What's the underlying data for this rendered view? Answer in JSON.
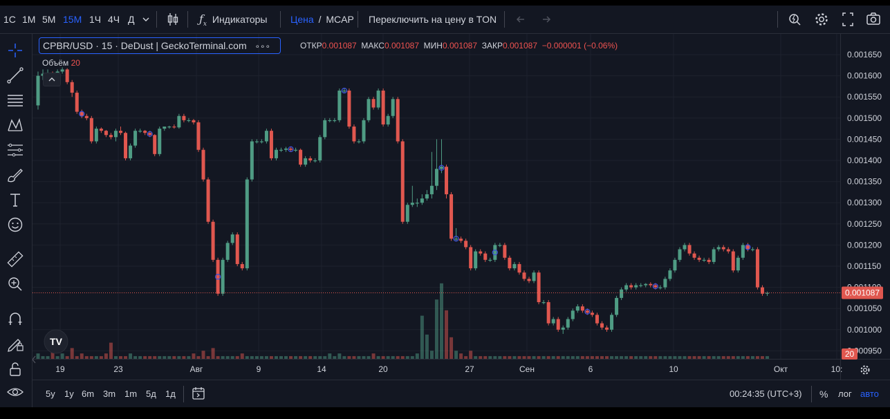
{
  "toolbar": {
    "intervals": [
      "1С",
      "1М",
      "5М",
      "15М",
      "1Ч",
      "4Ч",
      "Д"
    ],
    "active_interval": "15М",
    "indicators_label": "Индикаторы",
    "price_label": "Цена",
    "separator": "/",
    "mcap_label": "MCAP",
    "switch_label": "Переключить на цену в TON"
  },
  "legend": {
    "symbol": "CPBR/USD · 15 · DeDust | GeckoTerminal.com",
    "more": "∘∘∘",
    "open_key": "ОТКР",
    "open": "0.001087",
    "high_key": "МАКС",
    "high": "0.001087",
    "low_key": "МИН",
    "low": "0.001087",
    "close_key": "ЗАКР",
    "close": "0.001087",
    "change": "−0.000001 (−0.06%)",
    "volume_key": "Объём",
    "volume": "20"
  },
  "price_axis": {
    "ticks": [
      "0.001650",
      "0.001600",
      "0.001550",
      "0.001500",
      "0.001450",
      "0.001400",
      "0.001350",
      "0.001300",
      "0.001250",
      "0.001200",
      "0.001150",
      "0.001100",
      "0.001050",
      "0.001000",
      "0.000950"
    ],
    "last_price": "0.001087",
    "volume_badge": "20"
  },
  "time_axis": {
    "ticks": [
      "19",
      "23",
      "Авг",
      "9",
      "14",
      "20",
      "27",
      "Сен",
      "6",
      "10",
      "Окт",
      "10:"
    ]
  },
  "bottom": {
    "ranges": [
      "5y",
      "1y",
      "6m",
      "3m",
      "1m",
      "5д",
      "1д"
    ],
    "clock": "00:24:35 (UTC+3)",
    "percent": "%",
    "log": "лог",
    "auto": "авто"
  },
  "colors": {
    "up": "#4f9c84",
    "down": "#e0574f",
    "accent": "#2962ff",
    "background": "#131722"
  },
  "chart_data": {
    "type": "candlestick",
    "ylim": [
      0.000925,
      0.001675
    ],
    "candles": [
      [
        0.00153,
        0.00161,
        0.00152,
        0.0016
      ],
      [
        0.0016,
        0.001615,
        0.00159,
        0.001605
      ],
      [
        0.001605,
        0.001615,
        0.0016,
        0.001607
      ],
      [
        0.001607,
        0.00161,
        0.0016,
        0.001605
      ],
      [
        0.001605,
        0.001615,
        0.0016,
        0.00161
      ],
      [
        0.00161,
        0.00162,
        0.001605,
        0.001615
      ],
      [
        0.001615,
        0.001618,
        0.00158,
        0.001585
      ],
      [
        0.001585,
        0.00159,
        0.00155,
        0.00156
      ],
      [
        0.00156,
        0.001565,
        0.00151,
        0.001515
      ],
      [
        0.001515,
        0.00152,
        0.0015,
        0.001505
      ],
      [
        0.001505,
        0.00151,
        0.001495,
        0.0015
      ],
      [
        0.0015,
        0.001505,
        0.00144,
        0.001445
      ],
      [
        0.001445,
        0.00148,
        0.00144,
        0.001475
      ],
      [
        0.001475,
        0.001478,
        0.001465,
        0.00147
      ],
      [
        0.00147,
        0.001472,
        0.001455,
        0.00146
      ],
      [
        0.00146,
        0.001465,
        0.00145,
        0.001455
      ],
      [
        0.001455,
        0.001475,
        0.001445,
        0.00147
      ],
      [
        0.00147,
        0.00148,
        0.00146,
        0.001465
      ],
      [
        0.001465,
        0.001468,
        0.0014,
        0.001405
      ],
      [
        0.001405,
        0.00144,
        0.0014,
        0.001435
      ],
      [
        0.001435,
        0.001475,
        0.00143,
        0.00147
      ],
      [
        0.00147,
        0.001475,
        0.001465,
        0.00147
      ],
      [
        0.00147,
        0.001472,
        0.00146,
        0.001465
      ],
      [
        0.001465,
        0.00147,
        0.001455,
        0.00146
      ],
      [
        0.00146,
        0.001462,
        0.00141,
        0.001415
      ],
      [
        0.001415,
        0.00148,
        0.00141,
        0.001475
      ],
      [
        0.001475,
        0.00148,
        0.00147,
        0.00148
      ],
      [
        0.00148,
        0.001482,
        0.001475,
        0.00148
      ],
      [
        0.00148,
        0.001485,
        0.001475,
        0.001478
      ],
      [
        0.001478,
        0.00151,
        0.001475,
        0.001505
      ],
      [
        0.001505,
        0.00151,
        0.00149,
        0.001495
      ],
      [
        0.001495,
        0.0015,
        0.00149,
        0.001495
      ],
      [
        0.001495,
        0.001498,
        0.001485,
        0.00149
      ],
      [
        0.00149,
        0.001495,
        0.00142,
        0.001425
      ],
      [
        0.001425,
        0.00143,
        0.00135,
        0.001355
      ],
      [
        0.001355,
        0.00136,
        0.00125,
        0.001255
      ],
      [
        0.001255,
        0.00126,
        0.00116,
        0.001165
      ],
      [
        0.001165,
        0.00117,
        0.00108,
        0.001085
      ],
      [
        0.001085,
        0.00117,
        0.00108,
        0.001165
      ],
      [
        0.001165,
        0.00121,
        0.00116,
        0.001205
      ],
      [
        0.001205,
        0.00123,
        0.0012,
        0.001225
      ],
      [
        0.001225,
        0.00123,
        0.00115,
        0.001155
      ],
      [
        0.001155,
        0.00116,
        0.00114,
        0.001145
      ],
      [
        0.001145,
        0.00136,
        0.00114,
        0.001355
      ],
      [
        0.001355,
        0.00145,
        0.00135,
        0.001445
      ],
      [
        0.001445,
        0.00145,
        0.00144,
        0.001445
      ],
      [
        0.001445,
        0.00145,
        0.00144,
        0.001445
      ],
      [
        0.001445,
        0.001475,
        0.00144,
        0.00147
      ],
      [
        0.00147,
        0.001475,
        0.0014,
        0.001405
      ],
      [
        0.001405,
        0.00143,
        0.0014,
        0.001425
      ],
      [
        0.001425,
        0.00143,
        0.00142,
        0.001425
      ],
      [
        0.001425,
        0.001432,
        0.00142,
        0.001428
      ],
      [
        0.001428,
        0.001432,
        0.00142,
        0.001425
      ],
      [
        0.001425,
        0.00143,
        0.00142,
        0.001425
      ],
      [
        0.001425,
        0.001428,
        0.001385,
        0.00139
      ],
      [
        0.00139,
        0.00141,
        0.001385,
        0.001405
      ],
      [
        0.001405,
        0.00141,
        0.001395,
        0.0014
      ],
      [
        0.0014,
        0.001405,
        0.001395,
        0.0014
      ],
      [
        0.0014,
        0.00146,
        0.001395,
        0.001455
      ],
      [
        0.001455,
        0.0015,
        0.00145,
        0.001495
      ],
      [
        0.001495,
        0.0015,
        0.00149,
        0.001495
      ],
      [
        0.001495,
        0.0015,
        0.00149,
        0.001495
      ],
      [
        0.001495,
        0.00157,
        0.00149,
        0.001565
      ],
      [
        0.001565,
        0.00157,
        0.00156,
        0.001565
      ],
      [
        0.001565,
        0.00157,
        0.001475,
        0.00148
      ],
      [
        0.00148,
        0.001485,
        0.00144,
        0.001445
      ],
      [
        0.001445,
        0.00145,
        0.00144,
        0.001445
      ],
      [
        0.001445,
        0.0015,
        0.00144,
        0.001495
      ],
      [
        0.001495,
        0.00155,
        0.00149,
        0.001545
      ],
      [
        0.001545,
        0.00155,
        0.00152,
        0.001525
      ],
      [
        0.001525,
        0.00157,
        0.00152,
        0.001565
      ],
      [
        0.001565,
        0.00157,
        0.00148,
        0.001485
      ],
      [
        0.001485,
        0.00151,
        0.00148,
        0.001505
      ],
      [
        0.001505,
        0.00155,
        0.0015,
        0.001545
      ],
      [
        0.001545,
        0.00155,
        0.00144,
        0.001445
      ],
      [
        0.001445,
        0.00145,
        0.00125,
        0.001255
      ],
      [
        0.001255,
        0.0013,
        0.00125,
        0.001295
      ],
      [
        0.001295,
        0.00134,
        0.00129,
        0.0013
      ],
      [
        0.0013,
        0.00131,
        0.00129,
        0.0013
      ],
      [
        0.0013,
        0.00132,
        0.001295,
        0.00131
      ],
      [
        0.00131,
        0.00133,
        0.001305,
        0.00132
      ],
      [
        0.00132,
        0.00142,
        0.00131,
        0.00134
      ],
      [
        0.00134,
        0.00145,
        0.00133,
        0.00138
      ],
      [
        0.00138,
        0.00145,
        0.00137,
        0.001385
      ],
      [
        0.001385,
        0.00139,
        0.00131,
        0.00132
      ],
      [
        0.00132,
        0.001325,
        0.00121,
        0.001215
      ],
      [
        0.001215,
        0.00124,
        0.00121,
        0.001215
      ],
      [
        0.001215,
        0.00122,
        0.001205,
        0.00121
      ],
      [
        0.00121,
        0.001215,
        0.00119,
        0.001195
      ],
      [
        0.001195,
        0.0012,
        0.00114,
        0.001145
      ],
      [
        0.001145,
        0.00119,
        0.00114,
        0.001185
      ],
      [
        0.001185,
        0.00119,
        0.001175,
        0.00118
      ],
      [
        0.00118,
        0.001185,
        0.00116,
        0.001165
      ],
      [
        0.001165,
        0.00117,
        0.00116,
        0.001165
      ],
      [
        0.001165,
        0.001205,
        0.00116,
        0.0012
      ],
      [
        0.0012,
        0.001205,
        0.001195,
        0.0012
      ],
      [
        0.0012,
        0.001205,
        0.001165,
        0.00117
      ],
      [
        0.00117,
        0.001175,
        0.00114,
        0.001145
      ],
      [
        0.001145,
        0.00116,
        0.00114,
        0.001155
      ],
      [
        0.001155,
        0.00116,
        0.00113,
        0.001135
      ],
      [
        0.001135,
        0.00114,
        0.001115,
        0.00112
      ],
      [
        0.00112,
        0.001125,
        0.00111,
        0.001115
      ],
      [
        0.001115,
        0.00114,
        0.00111,
        0.001135
      ],
      [
        0.001135,
        0.00114,
        0.00106,
        0.001065
      ],
      [
        0.001065,
        0.00107,
        0.00106,
        0.001065
      ],
      [
        0.001065,
        0.00107,
        0.00101,
        0.001015
      ],
      [
        0.001015,
        0.00103,
        0.00101,
        0.001025
      ],
      [
        0.001025,
        0.00103,
        0.000995,
        0.001
      ],
      [
        0.001,
        0.00101,
        0.00099,
        0.001005
      ],
      [
        0.001005,
        0.00103,
        0.001,
        0.001025
      ],
      [
        0.001025,
        0.00105,
        0.00102,
        0.001045
      ],
      [
        0.001045,
        0.00106,
        0.00104,
        0.001055
      ],
      [
        0.001055,
        0.00106,
        0.00104,
        0.001045
      ],
      [
        0.001045,
        0.00105,
        0.001035,
        0.00104
      ],
      [
        0.00104,
        0.001045,
        0.00103,
        0.001035
      ],
      [
        0.001035,
        0.00104,
        0.00101,
        0.001015
      ],
      [
        0.001015,
        0.00102,
        0.001,
        0.001005
      ],
      [
        0.001005,
        0.00101,
        0.000995,
        0.001
      ],
      [
        0.001,
        0.00104,
        0.000995,
        0.001035
      ],
      [
        0.001035,
        0.00108,
        0.00103,
        0.001075
      ],
      [
        0.001075,
        0.0011,
        0.00107,
        0.001095
      ],
      [
        0.001095,
        0.00111,
        0.00109,
        0.001105
      ],
      [
        0.001105,
        0.00111,
        0.001095,
        0.0011
      ],
      [
        0.0011,
        0.00111,
        0.001095,
        0.001105
      ],
      [
        0.001105,
        0.00111,
        0.0011,
        0.001105
      ],
      [
        0.001105,
        0.00111,
        0.0011,
        0.001108
      ],
      [
        0.001108,
        0.001112,
        0.0011,
        0.001105
      ],
      [
        0.001105,
        0.00111,
        0.001095,
        0.0011
      ],
      [
        0.0011,
        0.001105,
        0.001095,
        0.0011
      ],
      [
        0.0011,
        0.001125,
        0.001095,
        0.00112
      ],
      [
        0.00112,
        0.001145,
        0.001115,
        0.00114
      ],
      [
        0.00114,
        0.00117,
        0.001135,
        0.001165
      ],
      [
        0.001165,
        0.001195,
        0.00116,
        0.00119
      ],
      [
        0.00119,
        0.001205,
        0.001185,
        0.0012
      ],
      [
        0.0012,
        0.001205,
        0.001175,
        0.00118
      ],
      [
        0.00118,
        0.001185,
        0.001165,
        0.00117
      ],
      [
        0.00117,
        0.001175,
        0.00116,
        0.001165
      ],
      [
        0.001165,
        0.00117,
        0.00116,
        0.001165
      ],
      [
        0.001165,
        0.00117,
        0.001155,
        0.00116
      ],
      [
        0.00116,
        0.001195,
        0.001155,
        0.00119
      ],
      [
        0.00119,
        0.0012,
        0.001185,
        0.001195
      ],
      [
        0.001195,
        0.0012,
        0.001185,
        0.00119
      ],
      [
        0.00119,
        0.001195,
        0.00118,
        0.001185
      ],
      [
        0.001185,
        0.00119,
        0.001135,
        0.00114
      ],
      [
        0.00114,
        0.001175,
        0.001135,
        0.00117
      ],
      [
        0.00117,
        0.001205,
        0.001165,
        0.0012
      ],
      [
        0.0012,
        0.001205,
        0.001185,
        0.00119
      ],
      [
        0.00119,
        0.001195,
        0.001185,
        0.00119
      ],
      [
        0.00119,
        0.001195,
        0.001095,
        0.0011
      ],
      [
        0.0011,
        0.001105,
        0.00108,
        0.001085
      ],
      [
        0.001085,
        0.00109,
        0.00108,
        0.001087
      ]
    ],
    "volumes": [
      2,
      1,
      1,
      3,
      1,
      2,
      1,
      4,
      1,
      2,
      1,
      1,
      1,
      1,
      2,
      6,
      1,
      1,
      1,
      2,
      1,
      1,
      1,
      1,
      1,
      1,
      1,
      1,
      1,
      1,
      1,
      1,
      2,
      1,
      3,
      1,
      4,
      1,
      1,
      1,
      1,
      1,
      2,
      1,
      1,
      1,
      1,
      1,
      1,
      1,
      1,
      1,
      1,
      1,
      1,
      1,
      1,
      1,
      1,
      1,
      2,
      1,
      2,
      1,
      1,
      1,
      1,
      1,
      1,
      2,
      1,
      1,
      1,
      1,
      1,
      1,
      1,
      1,
      2,
      16,
      9,
      3,
      22,
      28,
      18,
      8,
      3,
      2,
      1,
      3,
      1,
      1,
      1,
      1,
      1,
      1,
      1,
      1,
      1,
      1,
      1,
      1,
      1,
      1,
      1,
      1,
      1,
      1,
      1,
      1,
      1,
      1,
      1,
      1,
      1,
      1,
      1,
      1,
      1,
      1,
      1,
      1,
      1,
      1,
      1,
      1,
      1,
      1,
      1,
      1,
      1,
      1,
      1,
      1,
      1,
      1,
      1,
      1,
      1,
      1,
      1,
      1,
      1,
      1,
      1,
      1,
      1,
      1,
      1,
      1,
      1,
      1,
      3,
      1,
      1
    ],
    "markers": [
      9,
      23,
      37,
      52,
      63,
      83,
      86,
      94,
      113,
      127,
      146
    ]
  }
}
